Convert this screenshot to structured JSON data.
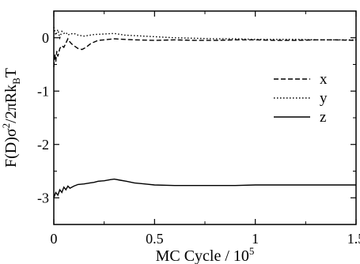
{
  "chart_data": {
    "type": "line",
    "xlabel": "MC Cycle / 10",
    "xlabel_exponent": "5",
    "ylabel": {
      "base": "F(D)σ",
      "sup": "2",
      "mid": "/2πRk",
      "sub": "B",
      "end": "T"
    },
    "xlim": [
      0,
      1.5
    ],
    "ylim": [
      -3.5,
      0.5
    ],
    "x_ticks": [
      0,
      0.5,
      1,
      1.5
    ],
    "x_tick_labels": [
      "0",
      "0.5",
      "1",
      "1.5"
    ],
    "y_ticks": [
      0,
      -1,
      -2,
      -3
    ],
    "y_tick_labels": [
      "0",
      "-1",
      "-2",
      "-3"
    ],
    "grid": false,
    "legend_position": "right",
    "series": [
      {
        "name": "x",
        "style": "dashed",
        "color": "#000000",
        "x": [
          0,
          0.005,
          0.01,
          0.015,
          0.02,
          0.03,
          0.04,
          0.05,
          0.06,
          0.07,
          0.08,
          0.09,
          0.1,
          0.12,
          0.14,
          0.16,
          0.18,
          0.2,
          0.22,
          0.25,
          0.3,
          0.35,
          0.4,
          0.5,
          0.6,
          0.7,
          0.8,
          0.9,
          1.0,
          1.1,
          1.2,
          1.3,
          1.4,
          1.5
        ],
        "y": [
          -0.55,
          -0.3,
          -0.45,
          -0.25,
          -0.35,
          -0.2,
          -0.15,
          -0.18,
          -0.1,
          -0.02,
          -0.08,
          -0.12,
          -0.15,
          -0.2,
          -0.22,
          -0.18,
          -0.12,
          -0.08,
          -0.05,
          -0.04,
          -0.02,
          -0.03,
          -0.04,
          -0.05,
          -0.04,
          -0.05,
          -0.05,
          -0.04,
          -0.04,
          -0.05,
          -0.05,
          -0.04,
          -0.04,
          -0.05
        ]
      },
      {
        "name": "y",
        "style": "dotted",
        "color": "#000000",
        "x": [
          0,
          0.01,
          0.02,
          0.03,
          0.04,
          0.05,
          0.06,
          0.07,
          0.08,
          0.1,
          0.12,
          0.15,
          0.2,
          0.25,
          0.3,
          0.35,
          0.4,
          0.5,
          0.6,
          0.7,
          0.8,
          0.9,
          1.0,
          1.1,
          1.2,
          1.3,
          1.4,
          1.5
        ],
        "y": [
          0.2,
          0.05,
          0.15,
          0.0,
          0.12,
          0.08,
          0.1,
          0.05,
          0.07,
          0.08,
          0.05,
          0.03,
          0.06,
          0.07,
          0.08,
          0.05,
          0.04,
          0.02,
          0.0,
          -0.01,
          -0.02,
          -0.02,
          -0.03,
          -0.03,
          -0.03,
          -0.04,
          -0.04,
          -0.04
        ]
      },
      {
        "name": "z",
        "style": "solid",
        "color": "#000000",
        "x": [
          0,
          0.01,
          0.02,
          0.03,
          0.04,
          0.05,
          0.06,
          0.07,
          0.08,
          0.1,
          0.12,
          0.15,
          0.18,
          0.2,
          0.22,
          0.25,
          0.28,
          0.3,
          0.33,
          0.36,
          0.4,
          0.45,
          0.5,
          0.6,
          0.7,
          0.8,
          0.9,
          1.0,
          1.1,
          1.2,
          1.3,
          1.4,
          1.5
        ],
        "y": [
          -3.0,
          -2.9,
          -2.95,
          -2.85,
          -2.9,
          -2.8,
          -2.85,
          -2.78,
          -2.82,
          -2.78,
          -2.75,
          -2.74,
          -2.72,
          -2.71,
          -2.69,
          -2.68,
          -2.66,
          -2.65,
          -2.67,
          -2.69,
          -2.72,
          -2.74,
          -2.76,
          -2.77,
          -2.77,
          -2.77,
          -2.77,
          -2.76,
          -2.76,
          -2.76,
          -2.76,
          -2.76,
          -2.76
        ]
      }
    ]
  }
}
